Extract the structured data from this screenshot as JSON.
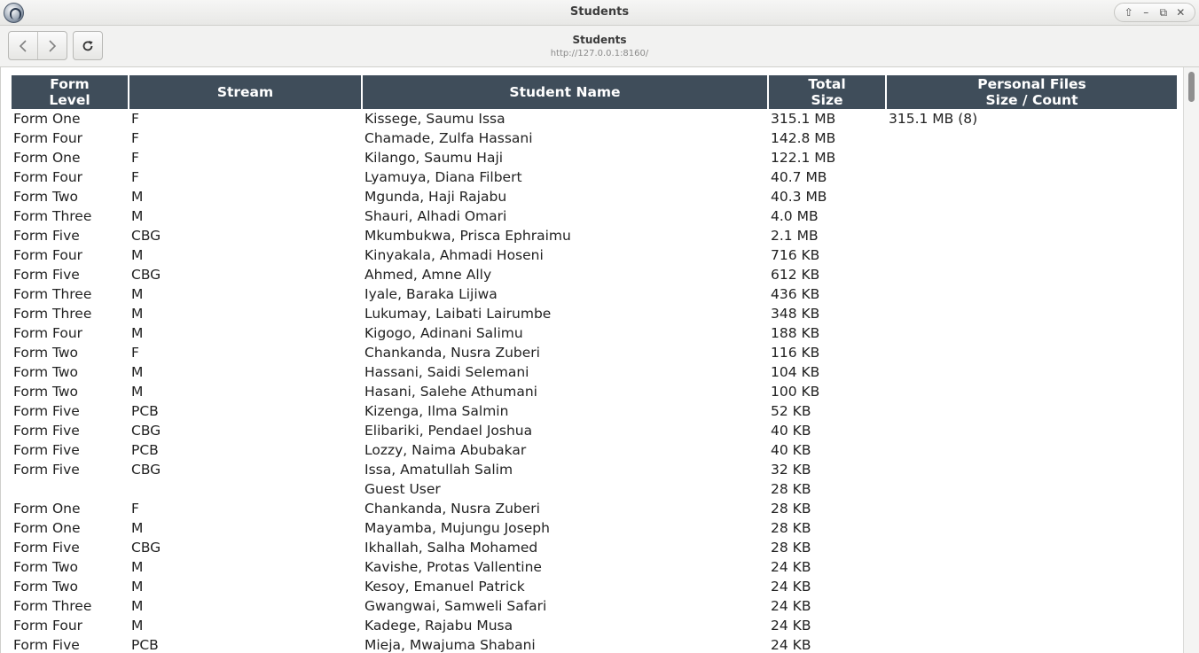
{
  "window": {
    "title": "Students"
  },
  "toolbar": {
    "page_title": "Students",
    "url": "http://127.0.0.1:8160/"
  },
  "table": {
    "headers": {
      "form_level": [
        "Form",
        "Level"
      ],
      "stream": "Stream",
      "student_name": "Student Name",
      "total_size": [
        "Total",
        "Size"
      ],
      "personal_files": [
        "Personal Files",
        "Size / Count"
      ]
    },
    "rows": [
      {
        "form": "Form One",
        "stream": "F",
        "name": "Kissege, Saumu Issa",
        "size": "315.1 MB",
        "files": "315.1 MB (8)"
      },
      {
        "form": "Form Four",
        "stream": "F",
        "name": "Chamade, Zulfa Hassani",
        "size": "142.8 MB",
        "files": ""
      },
      {
        "form": "Form One",
        "stream": "F",
        "name": "Kilango, Saumu Haji",
        "size": "122.1 MB",
        "files": ""
      },
      {
        "form": "Form Four",
        "stream": "F",
        "name": "Lyamuya, Diana Filbert",
        "size": "40.7 MB",
        "files": ""
      },
      {
        "form": "Form Two",
        "stream": "M",
        "name": "Mgunda, Haji Rajabu",
        "size": "40.3 MB",
        "files": ""
      },
      {
        "form": "Form Three",
        "stream": "M",
        "name": "Shauri, Alhadi Omari",
        "size": "4.0 MB",
        "files": ""
      },
      {
        "form": "Form Five",
        "stream": "CBG",
        "name": "Mkumbukwa, Prisca Ephraimu",
        "size": "2.1 MB",
        "files": ""
      },
      {
        "form": "Form Four",
        "stream": "M",
        "name": "Kinyakala, Ahmadi Hoseni",
        "size": "716 KB",
        "files": ""
      },
      {
        "form": "Form Five",
        "stream": "CBG",
        "name": "Ahmed, Amne Ally",
        "size": "612 KB",
        "files": ""
      },
      {
        "form": "Form Three",
        "stream": "M",
        "name": "Iyale, Baraka Lijiwa",
        "size": "436 KB",
        "files": ""
      },
      {
        "form": "Form Three",
        "stream": "M",
        "name": "Lukumay, Laibati Lairumbe",
        "size": "348 KB",
        "files": ""
      },
      {
        "form": "Form Four",
        "stream": "M",
        "name": "Kigogo, Adinani Salimu",
        "size": "188 KB",
        "files": ""
      },
      {
        "form": "Form Two",
        "stream": "F",
        "name": "Chankanda, Nusra Zuberi",
        "size": "116 KB",
        "files": ""
      },
      {
        "form": "Form Two",
        "stream": "M",
        "name": "Hassani, Saidi Selemani",
        "size": "104 KB",
        "files": ""
      },
      {
        "form": "Form Two",
        "stream": "M",
        "name": "Hasani, Salehe Athumani",
        "size": "100 KB",
        "files": ""
      },
      {
        "form": "Form Five",
        "stream": "PCB",
        "name": "Kizenga, Ilma Salmin",
        "size": "52 KB",
        "files": ""
      },
      {
        "form": "Form Five",
        "stream": "CBG",
        "name": "Elibariki, Pendael Joshua",
        "size": "40 KB",
        "files": ""
      },
      {
        "form": "Form Five",
        "stream": "PCB",
        "name": "Lozzy, Naima Abubakar",
        "size": "40 KB",
        "files": ""
      },
      {
        "form": "Form Five",
        "stream": "CBG",
        "name": "Issa, Amatullah Salim",
        "size": "32 KB",
        "files": ""
      },
      {
        "form": "",
        "stream": "",
        "name": "Guest User",
        "size": "28 KB",
        "files": ""
      },
      {
        "form": "Form One",
        "stream": "F",
        "name": "Chankanda, Nusra Zuberi",
        "size": "28 KB",
        "files": ""
      },
      {
        "form": "Form One",
        "stream": "M",
        "name": "Mayamba, Mujungu Joseph",
        "size": "28 KB",
        "files": ""
      },
      {
        "form": "Form Five",
        "stream": "CBG",
        "name": "Ikhallah, Salha Mohamed",
        "size": "28 KB",
        "files": ""
      },
      {
        "form": "Form Two",
        "stream": "M",
        "name": "Kavishe, Protas Vallentine",
        "size": "24 KB",
        "files": ""
      },
      {
        "form": "Form Two",
        "stream": "M",
        "name": "Kesoy, Emanuel Patrick",
        "size": "24 KB",
        "files": ""
      },
      {
        "form": "Form Three",
        "stream": "M",
        "name": "Gwangwai, Samweli Safari",
        "size": "24 KB",
        "files": ""
      },
      {
        "form": "Form Four",
        "stream": "M",
        "name": "Kadege, Rajabu Musa",
        "size": "24 KB",
        "files": ""
      },
      {
        "form": "Form Five",
        "stream": "PCB",
        "name": "Mieja, Mwajuma Shabani",
        "size": "24 KB",
        "files": ""
      }
    ]
  }
}
